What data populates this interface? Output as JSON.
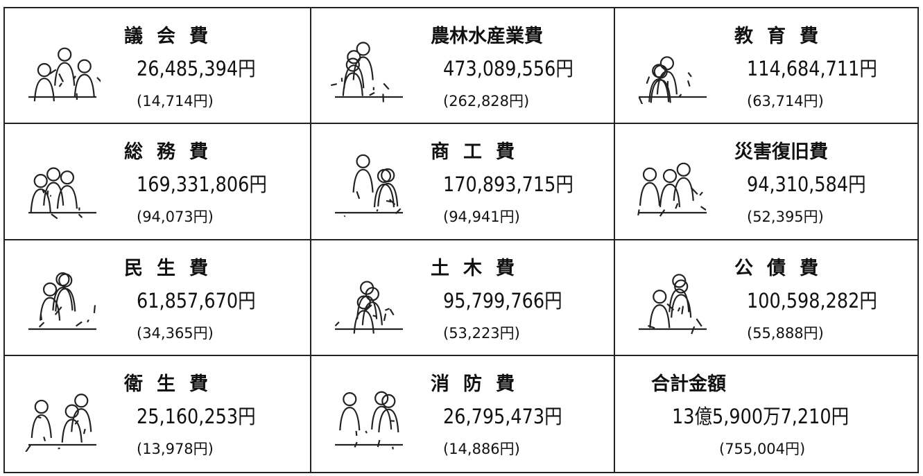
{
  "cells": [
    {
      "name": "議会費",
      "amount": "26,485,394円",
      "per_capita": "(14,714円)"
    },
    {
      "name": "農林水産業費",
      "amount": "473,089,556円",
      "per_capita": "(262,828円)"
    },
    {
      "name": "教育費",
      "amount": "114,684,711円",
      "per_capita": "(63,714円)"
    },
    {
      "name": "総務費",
      "amount": "169,331,806円",
      "per_capita": "(94,073円)"
    },
    {
      "name": "商工費",
      "amount": "170,893,715円",
      "per_capita": "(94,941円)"
    },
    {
      "name": "災害復旧費",
      "amount": "94,310,584円",
      "per_capita": "(52,395円)"
    },
    {
      "name": "民生費",
      "amount": "61,857,670円",
      "per_capita": "(34,365円)"
    },
    {
      "name": "土木費",
      "amount": "95,799,766円",
      "per_capita": "(53,223円)"
    },
    {
      "name": "公債費",
      "amount": "100,598,282円",
      "per_capita": "(55,888円)"
    },
    {
      "name": "衛生費",
      "amount": "25,160,253円",
      "per_capita": "(13,978円)"
    },
    {
      "name": "消防費",
      "amount": "26,795,473円",
      "per_capita": "(14,886円)"
    },
    {
      "name": "合計金額",
      "amount": "13億5,900万7,210円",
      "per_capita": "(755,004円)"
    }
  ]
}
